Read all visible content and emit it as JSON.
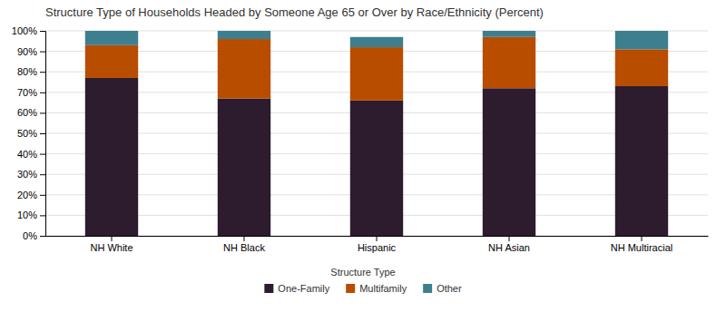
{
  "chart_data": {
    "type": "bar",
    "stacked": true,
    "title": "Structure Type of Households Headed by Someone Age 65 or Over by Race/Ethnicity (Percent)",
    "categories": [
      "NH White",
      "NH Black",
      "Hispanic",
      "NH Asian",
      "NH Multiracial"
    ],
    "series": [
      {
        "name": "One-Family",
        "color": "#2d1b2e",
        "values": [
          77,
          67,
          66,
          72,
          73
        ]
      },
      {
        "name": "Multifamily",
        "color": "#b84d00",
        "values": [
          16,
          29,
          26,
          25,
          18
        ]
      },
      {
        "name": "Other",
        "color": "#3d7f8f",
        "values": [
          7,
          4,
          5,
          3,
          9
        ]
      }
    ],
    "ylim": [
      0,
      100
    ],
    "yticks": [
      {
        "value": 0,
        "label": "0%"
      },
      {
        "value": 10,
        "label": "10%"
      },
      {
        "value": 20,
        "label": "20%"
      },
      {
        "value": 30,
        "label": "30%"
      },
      {
        "value": 40,
        "label": "40%"
      },
      {
        "value": 50,
        "label": "50%"
      },
      {
        "value": 60,
        "label": "60%"
      },
      {
        "value": 70,
        "label": "70%"
      },
      {
        "value": 80,
        "label": "80%"
      },
      {
        "value": 90,
        "label": "90%"
      },
      {
        "value": 100,
        "label": "100%"
      }
    ],
    "grid": true,
    "legend": "bottom",
    "legend_title": "Structure Type"
  }
}
